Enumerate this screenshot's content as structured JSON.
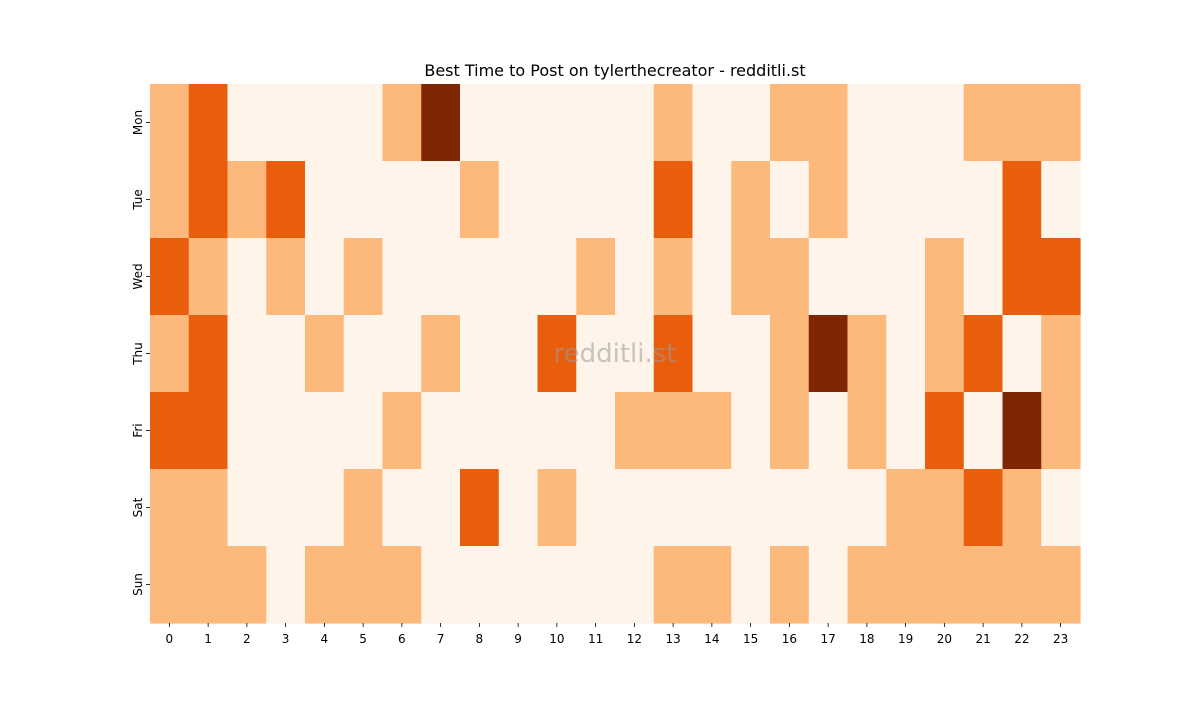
{
  "chart_data": {
    "type": "heatmap",
    "title": "Best Time to Post on tylerthecreator - redditli.st",
    "watermark": "redditli.st",
    "xlabel": "",
    "ylabel": "",
    "x_categories": [
      "0",
      "1",
      "2",
      "3",
      "4",
      "5",
      "6",
      "7",
      "8",
      "9",
      "10",
      "11",
      "12",
      "13",
      "14",
      "15",
      "16",
      "17",
      "18",
      "19",
      "20",
      "21",
      "22",
      "23"
    ],
    "y_categories": [
      "Mon",
      "Tue",
      "Wed",
      "Thu",
      "Fri",
      "Sat",
      "Sun"
    ],
    "values": [
      [
        1,
        2,
        0,
        0,
        0,
        0,
        1,
        3,
        0,
        0,
        0,
        0,
        0,
        1,
        0,
        0,
        1,
        1,
        0,
        0,
        0,
        1,
        1,
        1
      ],
      [
        1,
        2,
        1,
        2,
        0,
        0,
        0,
        0,
        1,
        0,
        0,
        0,
        0,
        2,
        0,
        1,
        0,
        1,
        0,
        0,
        0,
        0,
        2,
        0
      ],
      [
        2,
        1,
        0,
        1,
        0,
        1,
        0,
        0,
        0,
        0,
        0,
        1,
        0,
        1,
        0,
        1,
        1,
        0,
        0,
        0,
        1,
        0,
        2,
        2
      ],
      [
        1,
        2,
        0,
        0,
        1,
        0,
        0,
        1,
        0,
        0,
        2,
        0,
        0,
        2,
        0,
        0,
        1,
        3,
        1,
        0,
        1,
        2,
        0,
        1
      ],
      [
        2,
        2,
        0,
        0,
        0,
        0,
        1,
        0,
        0,
        0,
        0,
        0,
        1,
        1,
        1,
        0,
        1,
        0,
        1,
        0,
        2,
        0,
        3,
        1
      ],
      [
        1,
        1,
        0,
        0,
        0,
        1,
        0,
        0,
        2,
        0,
        1,
        0,
        0,
        0,
        0,
        0,
        0,
        0,
        0,
        1,
        1,
        2,
        1,
        0
      ],
      [
        1,
        1,
        1,
        0,
        1,
        1,
        1,
        0,
        0,
        0,
        0,
        0,
        0,
        1,
        1,
        0,
        1,
        0,
        1,
        1,
        1,
        1,
        1,
        1
      ]
    ],
    "value_range": [
      0,
      3
    ],
    "colormap": [
      "#fef4e9",
      "#fdb87c",
      "#e95e0d",
      "#7f2704"
    ],
    "grid": false,
    "colorbar": false
  }
}
